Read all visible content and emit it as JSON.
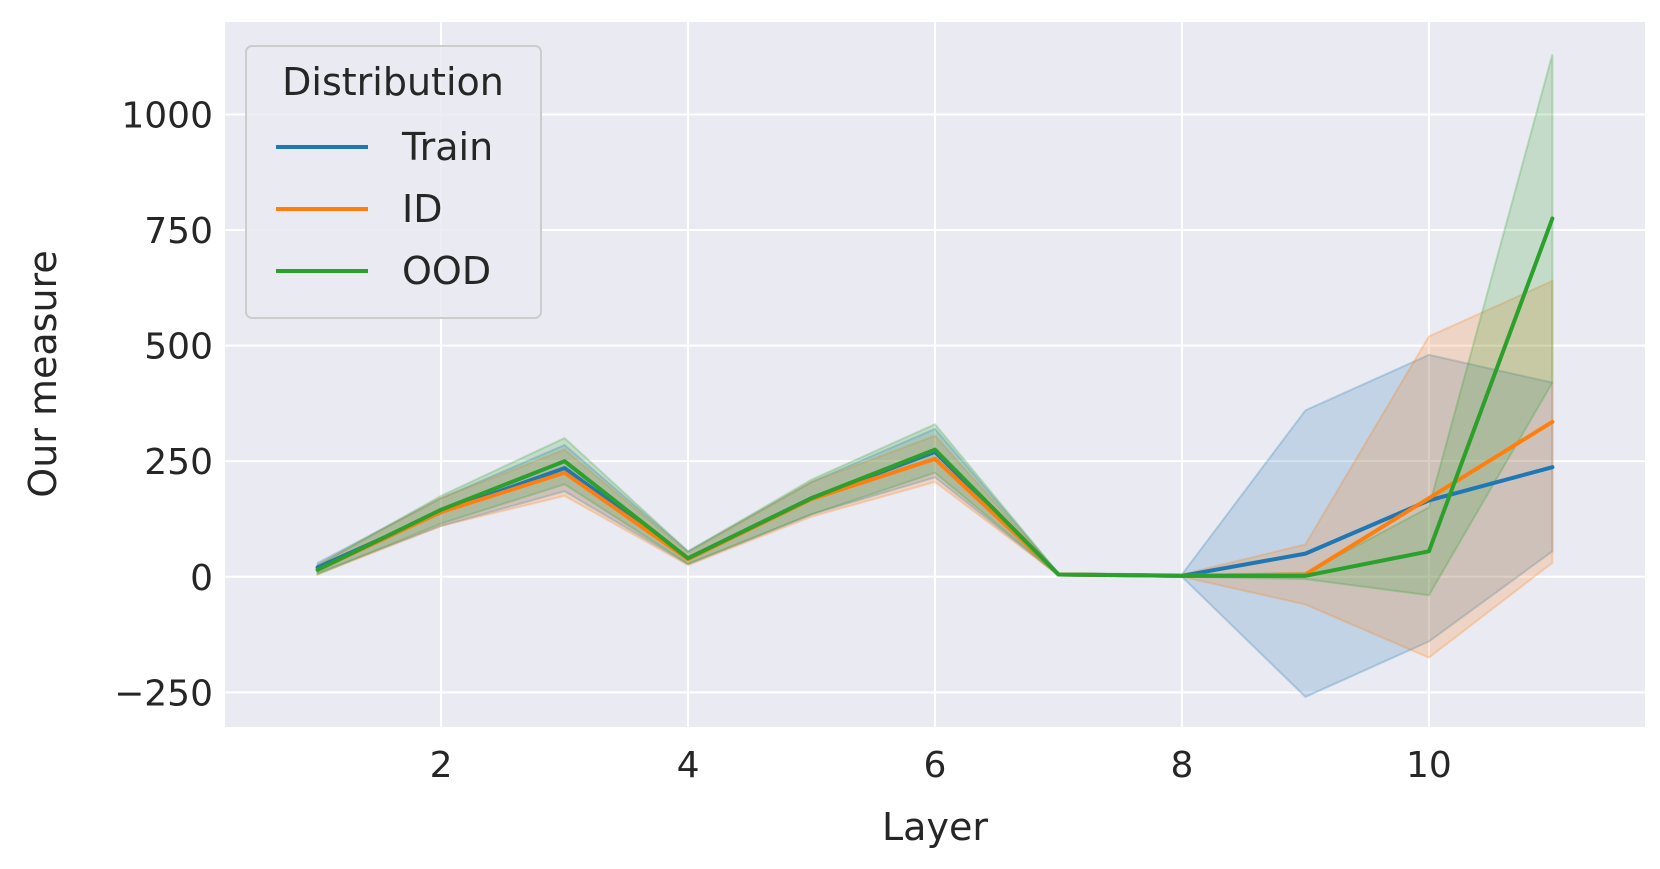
{
  "chart_data": {
    "type": "line",
    "xlabel": "Layer",
    "ylabel": "Our measure",
    "xlim": [
      0.25,
      11.75
    ],
    "ylim": [
      -325,
      1200
    ],
    "xticks": [
      2,
      4,
      6,
      8,
      10
    ],
    "yticks": [
      -250,
      0,
      250,
      500,
      750,
      1000
    ],
    "x": [
      1,
      2,
      3,
      4,
      5,
      6,
      7,
      8,
      9,
      10,
      11
    ],
    "grid": true,
    "legend": {
      "title": "Distribution",
      "position": "top-left"
    },
    "series": [
      {
        "name": "Train",
        "color": "#1f77b4",
        "values": [
          20,
          140,
          235,
          40,
          170,
          270,
          5,
          2,
          50,
          165,
          237
        ],
        "lower": [
          8,
          110,
          185,
          27,
          135,
          215,
          3,
          0,
          -260,
          -140,
          55
        ],
        "upper": [
          30,
          170,
          285,
          55,
          205,
          320,
          7,
          5,
          360,
          480,
          420
        ]
      },
      {
        "name": "ID",
        "color": "#ff7f0e",
        "values": [
          15,
          140,
          225,
          38,
          168,
          255,
          5,
          2,
          5,
          170,
          335
        ],
        "lower": [
          5,
          110,
          175,
          25,
          130,
          205,
          3,
          0,
          -60,
          -175,
          30
        ],
        "upper": [
          25,
          170,
          275,
          52,
          205,
          305,
          7,
          5,
          70,
          520,
          640
        ]
      },
      {
        "name": "OOD",
        "color": "#2ca02c",
        "values": [
          15,
          145,
          250,
          40,
          170,
          275,
          5,
          2,
          2,
          55,
          775
        ],
        "lower": [
          5,
          115,
          200,
          28,
          135,
          225,
          3,
          0,
          -5,
          -40,
          420
        ],
        "upper": [
          25,
          175,
          300,
          55,
          210,
          330,
          7,
          5,
          8,
          150,
          1130
        ]
      }
    ]
  }
}
